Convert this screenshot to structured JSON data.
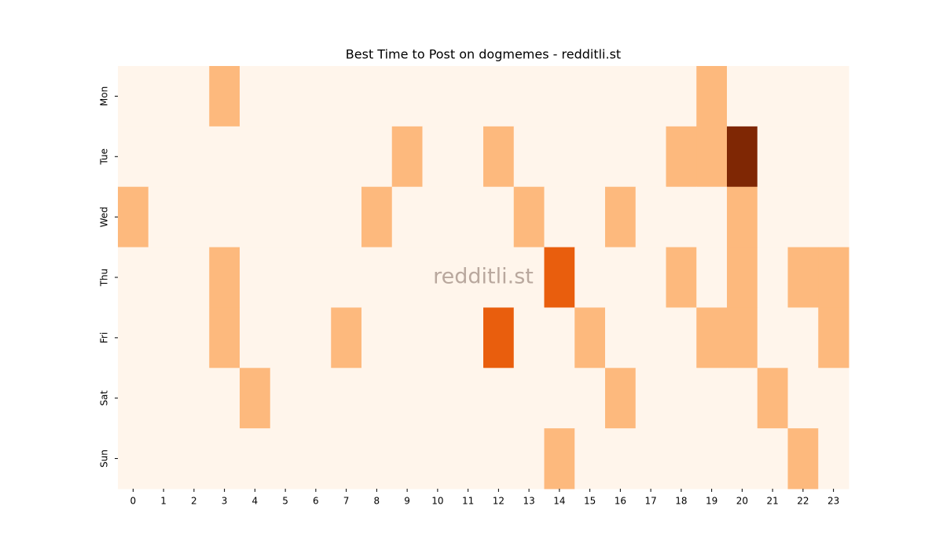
{
  "chart_data": {
    "type": "heatmap",
    "title": "Best Time to Post on dogmemes - redditli.st",
    "watermark": "redditli.st",
    "x": [
      0,
      1,
      2,
      3,
      4,
      5,
      6,
      7,
      8,
      9,
      10,
      11,
      12,
      13,
      14,
      15,
      16,
      17,
      18,
      19,
      20,
      21,
      22,
      23
    ],
    "y": [
      "Mon",
      "Tue",
      "Wed",
      "Thu",
      "Fri",
      "Sat",
      "Sun"
    ],
    "values": [
      [
        0,
        0,
        0,
        1,
        0,
        0,
        0,
        0,
        0,
        0,
        0,
        0,
        0,
        0,
        0,
        0,
        0,
        0,
        0,
        1,
        0,
        0,
        0,
        0
      ],
      [
        0,
        0,
        0,
        0,
        0,
        0,
        0,
        0,
        0,
        1,
        0,
        0,
        1,
        0,
        0,
        0,
        0,
        0,
        1,
        1,
        3,
        0,
        0,
        0
      ],
      [
        1,
        0,
        0,
        0,
        0,
        0,
        0,
        0,
        1,
        0,
        0,
        0,
        0,
        1,
        0,
        0,
        1,
        0,
        0,
        0,
        1,
        0,
        0,
        0
      ],
      [
        0,
        0,
        0,
        1,
        0,
        0,
        0,
        0,
        0,
        0,
        0,
        0,
        0,
        0,
        2,
        0,
        0,
        0,
        1,
        0,
        1,
        0,
        1,
        1
      ],
      [
        0,
        0,
        0,
        1,
        0,
        0,
        0,
        1,
        0,
        0,
        0,
        0,
        2,
        0,
        0,
        1,
        0,
        0,
        0,
        1,
        1,
        0,
        0,
        1
      ],
      [
        0,
        0,
        0,
        0,
        1,
        0,
        0,
        0,
        0,
        0,
        0,
        0,
        0,
        0,
        0,
        0,
        1,
        0,
        0,
        0,
        0,
        1,
        0,
        0
      ],
      [
        0,
        0,
        0,
        0,
        0,
        0,
        0,
        0,
        0,
        0,
        0,
        0,
        0,
        0,
        1,
        0,
        0,
        0,
        0,
        0,
        0,
        0,
        1,
        0
      ]
    ],
    "colors": [
      "#fff5eb",
      "#fdb97d",
      "#e95e0d",
      "#7f2704"
    ]
  }
}
